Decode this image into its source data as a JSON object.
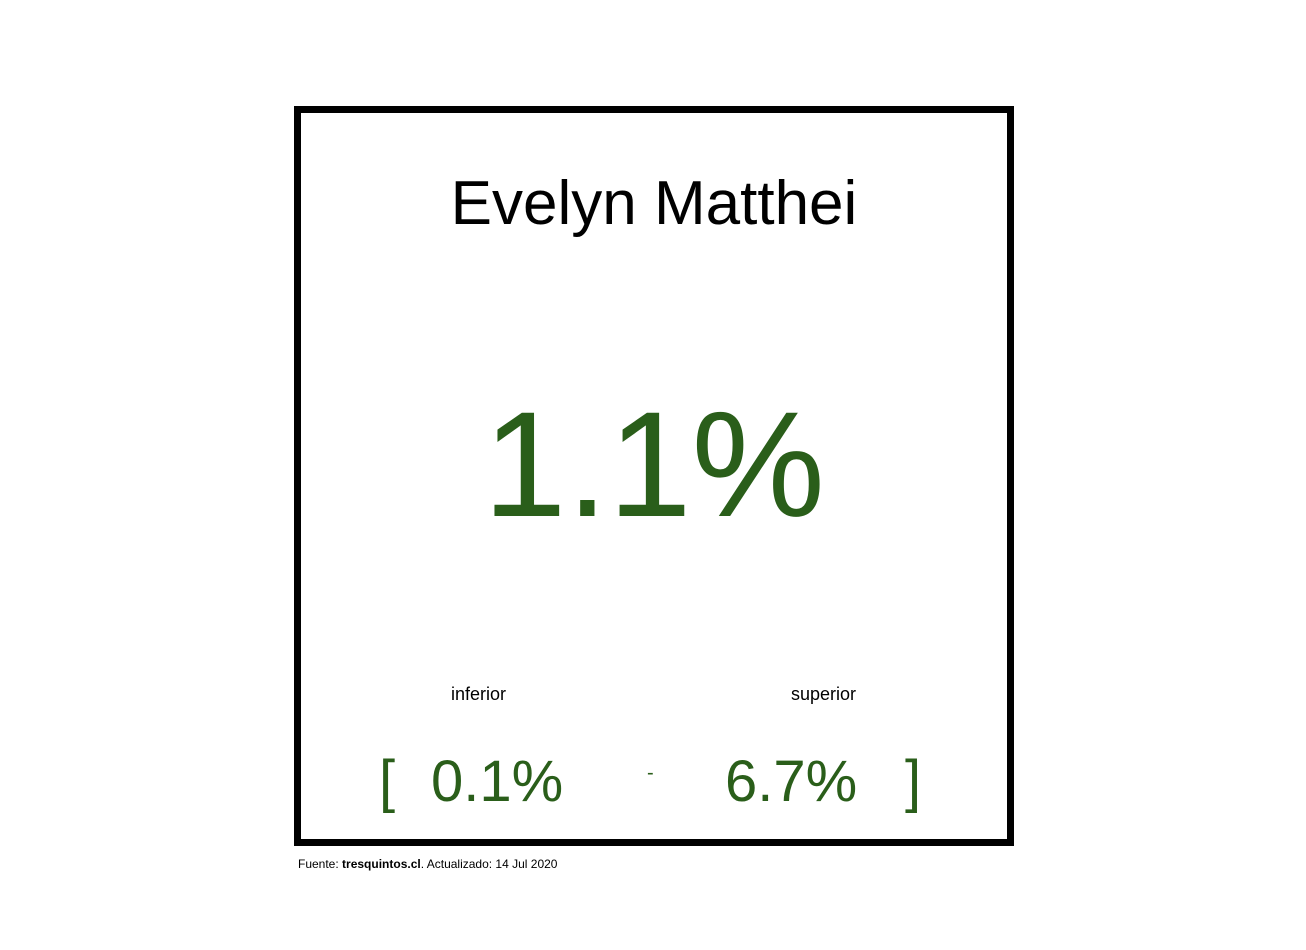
{
  "card": {
    "name": "Evelyn Matthei",
    "value": "1.1%",
    "value_color": "#2a5e1a",
    "interval": {
      "lower_label": "inferior",
      "upper_label": "superior",
      "open_bracket": "[",
      "lower_value": "0.1%",
      "separator": "-",
      "upper_value": "6.7%",
      "close_bracket": "]"
    }
  },
  "footer": {
    "source_prefix": "Fuente: ",
    "source_name": "tresquintos.cl",
    "updated_text": ". Actualizado: 14 Jul 2020"
  }
}
